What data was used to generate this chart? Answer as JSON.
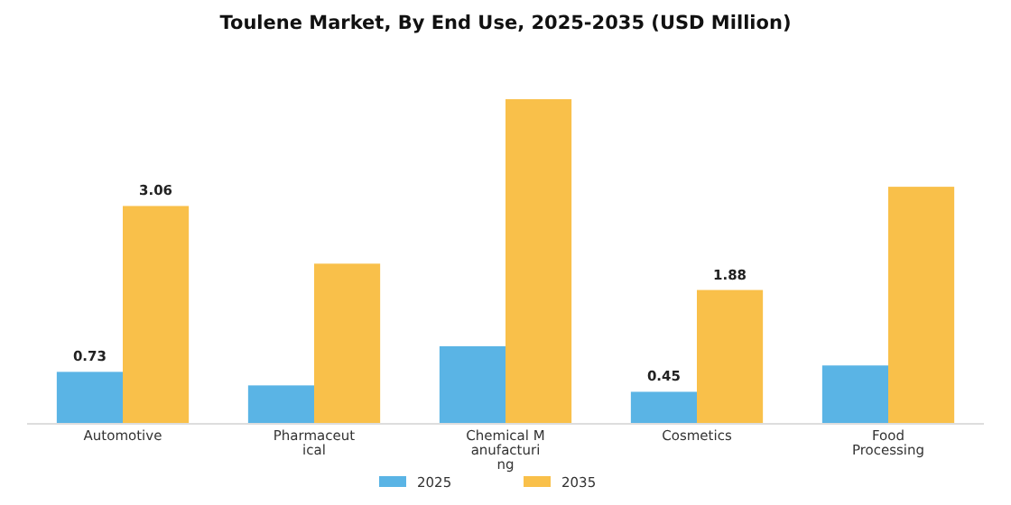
{
  "chart_data": {
    "type": "bar",
    "title": "Toulene Market, By End Use, 2025-2035 (USD Million)",
    "categories": [
      "Automotive",
      "Pharmaceut\nical",
      "Chemical M\nanufacturi\nng",
      "Cosmetics",
      "Food\nProcessing"
    ],
    "series": [
      {
        "name": "2025",
        "color": "#5ab4e5",
        "values": [
          0.73,
          0.54,
          1.09,
          0.45,
          0.82
        ],
        "value_labels": [
          "0.73",
          null,
          null,
          "0.45",
          null
        ]
      },
      {
        "name": "2035",
        "color": "#f9c04a",
        "values": [
          3.06,
          2.25,
          4.56,
          1.88,
          3.33
        ],
        "value_labels": [
          "3.06",
          null,
          null,
          "1.88",
          null
        ]
      }
    ],
    "legend": "bottom"
  }
}
